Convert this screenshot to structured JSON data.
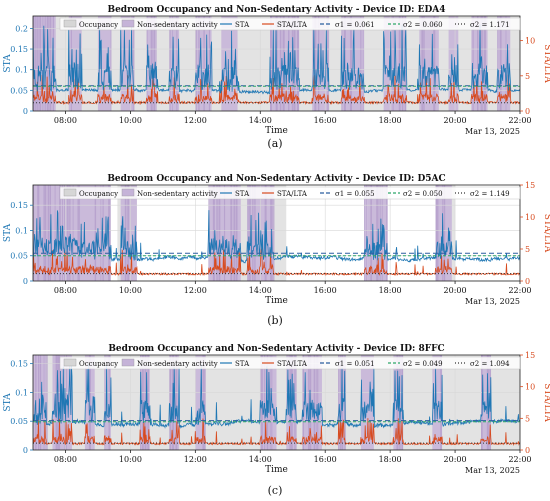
{
  "chart_data": [
    {
      "type": "line",
      "panel_label": "(a)",
      "title": "Bedroom Occupancy and Non-Sedentary Activity - Device ID: EDA4",
      "xlabel": "Time",
      "ylabel_left": "STA",
      "ylabel_right": "STA/LTA",
      "date_label": "Mar 13, 2025",
      "x_ticks": [
        "08:00",
        "10:00",
        "12:00",
        "14:00",
        "16:00",
        "18:00",
        "20:00",
        "22:00"
      ],
      "xlim": [
        7.0,
        22.0
      ],
      "ylim_left": [
        0,
        0.23
      ],
      "yticks_left": [
        "0",
        "0.05",
        "0.1",
        "0.15",
        "0.2"
      ],
      "ylim_right": [
        0,
        13.5
      ],
      "yticks_right": [
        "0",
        "5",
        "10"
      ],
      "legend": {
        "occupancy": "Occupancy",
        "activity": "Non-sedentary activity",
        "sta": "STA",
        "ratio": "STA/LTA",
        "sigma1": "σ1 = 0.061",
        "sigma2": "σ2 = 0.060",
        "sigma3": "σ2 = 1.171"
      },
      "thresholds": {
        "sigma1": 0.061,
        "sigma2": 0.06,
        "sigma_ratio": 1.171
      },
      "occupancy_intervals": [
        [
          7.0,
          22.0
        ]
      ],
      "activity_intervals": [
        [
          7.0,
          7.7
        ],
        [
          8.1,
          8.5
        ],
        [
          9.0,
          9.4
        ],
        [
          9.7,
          10.1
        ],
        [
          10.5,
          10.8
        ],
        [
          11.2,
          11.5
        ],
        [
          12.0,
          12.5
        ],
        [
          12.8,
          13.3
        ],
        [
          14.3,
          15.2
        ],
        [
          15.6,
          16.1
        ],
        [
          16.5,
          17.2
        ],
        [
          17.8,
          18.5
        ],
        [
          18.9,
          19.5
        ],
        [
          19.8,
          20.1
        ],
        [
          20.5,
          21.0
        ],
        [
          21.3,
          21.7
        ]
      ],
      "sta_baseline": 0.05,
      "sta_peak": 0.21,
      "ratio_baseline": 1.2
    },
    {
      "type": "line",
      "panel_label": "(b)",
      "title": "Bedroom Occupancy and Non-Sedentary Activity - Device ID: D5AC",
      "xlabel": "Time",
      "ylabel_left": "STA",
      "ylabel_right": "STA/LTA",
      "date_label": "Mar 13, 2025",
      "x_ticks": [
        "08:00",
        "10:00",
        "12:00",
        "14:00",
        "16:00",
        "18:00",
        "20:00",
        "22:00"
      ],
      "xlim": [
        7.0,
        22.0
      ],
      "ylim_left": [
        0,
        0.19
      ],
      "yticks_left": [
        "0",
        "0.05",
        "0.1",
        "0.15"
      ],
      "ylim_right": [
        0,
        15
      ],
      "yticks_right": [
        "0",
        "5",
        "10",
        "15"
      ],
      "legend": {
        "occupancy": "Occupancy",
        "activity": "Non-sedentary activity",
        "sta": "STA",
        "ratio": "STA/LTA",
        "sigma1": "σ1 = 0.055",
        "sigma2": "σ2 = 0.050",
        "sigma3": "σ2 = 1.149"
      },
      "thresholds": {
        "sigma1": 0.055,
        "sigma2": 0.05,
        "sigma_ratio": 1.149
      },
      "occupancy_intervals": [
        [
          7.0,
          9.4
        ],
        [
          9.6,
          10.2
        ],
        [
          12.4,
          14.8
        ],
        [
          17.3,
          17.9
        ],
        [
          19.4,
          20.0
        ]
      ],
      "activity_intervals": [
        [
          7.0,
          9.4
        ],
        [
          9.7,
          10.2
        ],
        [
          12.4,
          13.4
        ],
        [
          13.6,
          14.4
        ],
        [
          17.2,
          17.9
        ],
        [
          19.4,
          19.9
        ]
      ],
      "sta_baseline": 0.045,
      "sta_peak": 0.14,
      "ratio_baseline": 1.1
    },
    {
      "type": "line",
      "panel_label": "(c)",
      "title": "Bedroom Occupancy and Non-Sedentary Activity - Device ID: 8FFC",
      "xlabel": "Time",
      "ylabel_left": "STA",
      "ylabel_right": "STA/LTA",
      "date_label": "Mar 13, 2025",
      "x_ticks": [
        "08:00",
        "10:00",
        "12:00",
        "14:00",
        "16:00",
        "18:00",
        "20:00",
        "22:00"
      ],
      "xlim": [
        7.0,
        22.0
      ],
      "ylim_left": [
        0,
        0.165
      ],
      "yticks_left": [
        "0",
        "0.05",
        "0.1",
        "0.15"
      ],
      "ylim_right": [
        0,
        15
      ],
      "yticks_right": [
        "0",
        "5",
        "10",
        "15"
      ],
      "legend": {
        "occupancy": "Occupancy",
        "activity": "Non-sedentary activity",
        "sta": "STA",
        "ratio": "STA/LTA",
        "sigma1": "σ1 = 0.051",
        "sigma2": "σ2 = 0.049",
        "sigma3": "σ2 = 1.094"
      },
      "thresholds": {
        "sigma1": 0.051,
        "sigma2": 0.049,
        "sigma_ratio": 1.094
      },
      "occupancy_intervals": [
        [
          7.0,
          22.0
        ]
      ],
      "activity_intervals": [
        [
          7.0,
          7.4
        ],
        [
          7.6,
          8.2
        ],
        [
          8.6,
          8.9
        ],
        [
          9.2,
          9.4
        ],
        [
          10.3,
          10.6
        ],
        [
          11.2,
          11.5
        ],
        [
          12.0,
          12.3
        ],
        [
          14.0,
          14.5
        ],
        [
          14.8,
          15.1
        ],
        [
          15.3,
          15.9
        ],
        [
          16.4,
          16.6
        ],
        [
          17.1,
          17.5
        ],
        [
          18.1,
          18.4
        ],
        [
          19.3,
          19.6
        ],
        [
          20.8,
          21.1
        ]
      ],
      "sta_baseline": 0.045,
      "sta_peak": 0.15,
      "ratio_baseline": 1.0
    }
  ]
}
